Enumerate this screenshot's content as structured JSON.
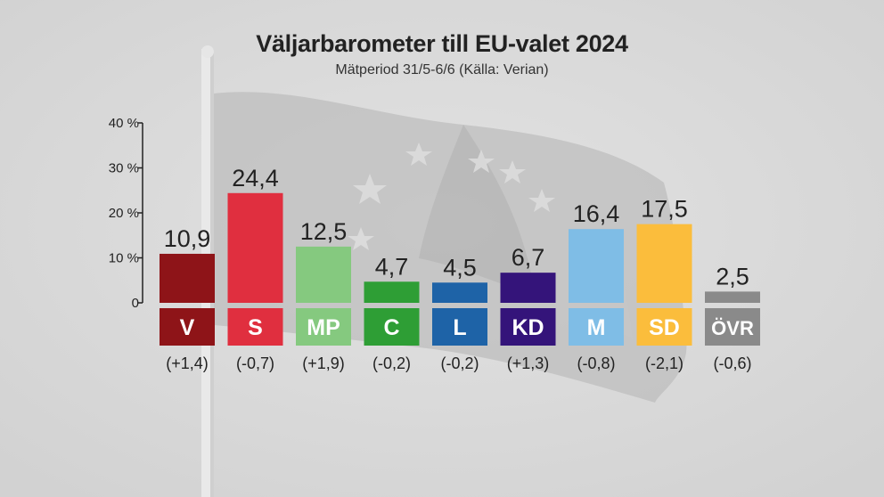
{
  "title": "Väljarbarometer till EU-valet 2024",
  "subtitle": "Mätperiod 31/5-6/6 (Källa: Verian)",
  "colors": {
    "axis": "#222222",
    "text": "#222222",
    "label_text": "#ffffff"
  },
  "chart_data": {
    "type": "bar",
    "title": "Väljarbarometer till EU-valet 2024",
    "subtitle": "Mätperiod 31/5-6/6 (Källa: Verian)",
    "ylim": [
      0,
      40
    ],
    "yticks": [
      {
        "value": 0,
        "label": "0"
      },
      {
        "value": 10,
        "label": "10 %"
      },
      {
        "value": 20,
        "label": "20 %"
      },
      {
        "value": 30,
        "label": "30 %"
      },
      {
        "value": 40,
        "label": "40 %"
      }
    ],
    "grid": false,
    "categories": [
      "V",
      "S",
      "MP",
      "C",
      "L",
      "KD",
      "M",
      "SD",
      "ÖVR"
    ],
    "values": [
      10.9,
      24.4,
      12.5,
      4.7,
      4.5,
      6.7,
      16.4,
      17.5,
      2.5
    ],
    "value_labels": [
      "10,9",
      "24,4",
      "12,5",
      "4,7",
      "4,5",
      "6,7",
      "16,4",
      "17,5",
      "2,5"
    ],
    "changes": [
      "(+1,4)",
      "(-0,7)",
      "(+1,9)",
      "(-0,2)",
      "(-0,2)",
      "(+1,3)",
      "(-0,8)",
      "(-2,1)",
      "(-0,6)"
    ],
    "bar_colors": [
      "#8e1418",
      "#e02f3f",
      "#85c97f",
      "#2e9e35",
      "#1e63a7",
      "#34147a",
      "#7fbde6",
      "#fbbd3c",
      "#8a8a8a"
    ]
  }
}
